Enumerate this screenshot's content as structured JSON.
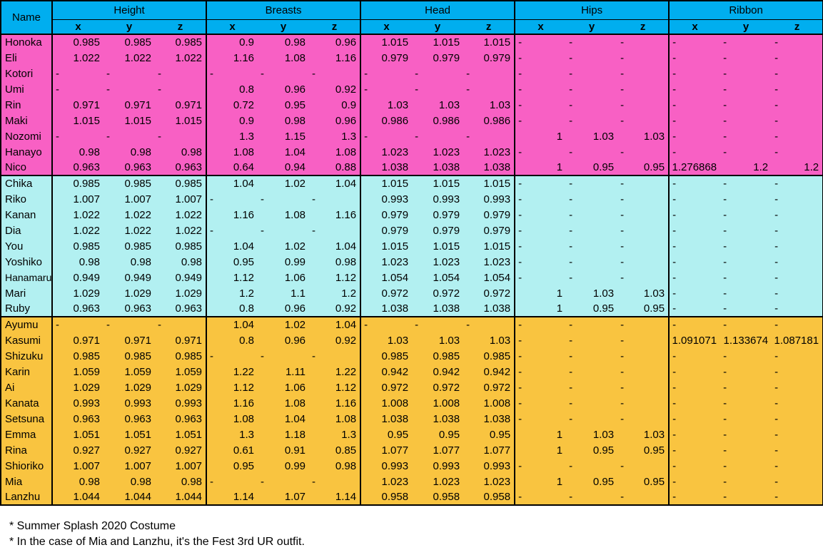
{
  "colors": {
    "header-bg": "#00AEEF",
    "muse-bg": "#F860C4",
    "aqours-bg": "#B2F0F1",
    "niji-bg": "#F9C440",
    "border": "#000000",
    "text": "#000000",
    "page-bg": "#FFFFFF"
  },
  "table": {
    "name_label": "Name",
    "group_keys": [
      "height",
      "breasts",
      "head",
      "hips",
      "ribbon"
    ],
    "groups": [
      {
        "key": "height",
        "label": "Height",
        "axes": [
          "x",
          "y",
          "z"
        ]
      },
      {
        "key": "breasts",
        "label": "Breasts",
        "axes": [
          "x",
          "y",
          "z"
        ]
      },
      {
        "key": "head",
        "label": "Head",
        "axes": [
          "x",
          "y",
          "z"
        ]
      },
      {
        "key": "hips",
        "label": "Hips",
        "axes": [
          "x",
          "y",
          "z"
        ]
      },
      {
        "key": "ribbon",
        "label": "Ribbon",
        "axes": [
          "x",
          "y",
          "z"
        ]
      }
    ],
    "sections": [
      {
        "group_name": "muse",
        "bg": "#F860C4",
        "rows": [
          {
            "name": "Honoka",
            "height": [
              "0.985",
              "0.985",
              "0.985"
            ],
            "breasts": [
              "0.9",
              "0.98",
              "0.96"
            ],
            "head": [
              "1.015",
              "1.015",
              "1.015"
            ],
            "hips": [
              "-",
              "-",
              "-"
            ],
            "ribbon": [
              "-",
              "-",
              "-"
            ]
          },
          {
            "name": "Eli",
            "height": [
              "1.022",
              "1.022",
              "1.022"
            ],
            "breasts": [
              "1.16",
              "1.08",
              "1.16"
            ],
            "head": [
              "0.979",
              "0.979",
              "0.979"
            ],
            "hips": [
              "-",
              "-",
              "-"
            ],
            "ribbon": [
              "-",
              "-",
              "-"
            ]
          },
          {
            "name": "Kotori",
            "height": [
              "-",
              "-",
              "-"
            ],
            "breasts": [
              "-",
              "-",
              "-"
            ],
            "head": [
              "-",
              "-",
              "-"
            ],
            "hips": [
              "-",
              "-",
              "-"
            ],
            "ribbon": [
              "-",
              "-",
              "-"
            ]
          },
          {
            "name": "Umi",
            "height": [
              "-",
              "-",
              "-"
            ],
            "breasts": [
              "0.8",
              "0.96",
              "0.92"
            ],
            "head": [
              "-",
              "-",
              "-"
            ],
            "hips": [
              "-",
              "-",
              "-"
            ],
            "ribbon": [
              "-",
              "-",
              "-"
            ]
          },
          {
            "name": "Rin",
            "height": [
              "0.971",
              "0.971",
              "0.971"
            ],
            "breasts": [
              "0.72",
              "0.95",
              "0.9"
            ],
            "head": [
              "1.03",
              "1.03",
              "1.03"
            ],
            "hips": [
              "-",
              "-",
              "-"
            ],
            "ribbon": [
              "-",
              "-",
              "-"
            ]
          },
          {
            "name": "Maki",
            "height": [
              "1.015",
              "1.015",
              "1.015"
            ],
            "breasts": [
              "0.9",
              "0.98",
              "0.96"
            ],
            "head": [
              "0.986",
              "0.986",
              "0.986"
            ],
            "hips": [
              "-",
              "-",
              "-"
            ],
            "ribbon": [
              "-",
              "-",
              "-"
            ]
          },
          {
            "name": "Nozomi",
            "height": [
              "-",
              "-",
              "-"
            ],
            "breasts": [
              "1.3",
              "1.15",
              "1.3"
            ],
            "head": [
              "-",
              "-",
              "-"
            ],
            "hips": [
              "1",
              "1.03",
              "1.03"
            ],
            "ribbon": [
              "-",
              "-",
              "-"
            ]
          },
          {
            "name": "Hanayo",
            "height": [
              "0.98",
              "0.98",
              "0.98"
            ],
            "breasts": [
              "1.08",
              "1.04",
              "1.08"
            ],
            "head": [
              "1.023",
              "1.023",
              "1.023"
            ],
            "hips": [
              "-",
              "-",
              "-"
            ],
            "ribbon": [
              "-",
              "-",
              "-"
            ]
          },
          {
            "name": "Nico",
            "height": [
              "0.963",
              "0.963",
              "0.963"
            ],
            "breasts": [
              "0.64",
              "0.94",
              "0.88"
            ],
            "head": [
              "1.038",
              "1.038",
              "1.038"
            ],
            "hips": [
              "1",
              "0.95",
              "0.95"
            ],
            "ribbon": [
              "1.276868",
              "1.2",
              "1.2"
            ]
          }
        ]
      },
      {
        "group_name": "aqours",
        "bg": "#B2F0F1",
        "rows": [
          {
            "name": "Chika",
            "height": [
              "0.985",
              "0.985",
              "0.985"
            ],
            "breasts": [
              "1.04",
              "1.02",
              "1.04"
            ],
            "head": [
              "1.015",
              "1.015",
              "1.015"
            ],
            "hips": [
              "-",
              "-",
              "-"
            ],
            "ribbon": [
              "-",
              "-",
              "-"
            ]
          },
          {
            "name": "Riko",
            "height": [
              "1.007",
              "1.007",
              "1.007"
            ],
            "breasts": [
              "-",
              "-",
              "-"
            ],
            "head": [
              "0.993",
              "0.993",
              "0.993"
            ],
            "hips": [
              "-",
              "-",
              "-"
            ],
            "ribbon": [
              "-",
              "-",
              "-"
            ]
          },
          {
            "name": "Kanan",
            "height": [
              "1.022",
              "1.022",
              "1.022"
            ],
            "breasts": [
              "1.16",
              "1.08",
              "1.16"
            ],
            "head": [
              "0.979",
              "0.979",
              "0.979"
            ],
            "hips": [
              "-",
              "-",
              "-"
            ],
            "ribbon": [
              "-",
              "-",
              "-"
            ]
          },
          {
            "name": "Dia",
            "height": [
              "1.022",
              "1.022",
              "1.022"
            ],
            "breasts": [
              "-",
              "-",
              "-"
            ],
            "head": [
              "0.979",
              "0.979",
              "0.979"
            ],
            "hips": [
              "-",
              "-",
              "-"
            ],
            "ribbon": [
              "-",
              "-",
              "-"
            ]
          },
          {
            "name": "You",
            "height": [
              "0.985",
              "0.985",
              "0.985"
            ],
            "breasts": [
              "1.04",
              "1.02",
              "1.04"
            ],
            "head": [
              "1.015",
              "1.015",
              "1.015"
            ],
            "hips": [
              "-",
              "-",
              "-"
            ],
            "ribbon": [
              "-",
              "-",
              "-"
            ]
          },
          {
            "name": "Yoshiko",
            "height": [
              "0.98",
              "0.98",
              "0.98"
            ],
            "breasts": [
              "0.95",
              "0.99",
              "0.98"
            ],
            "head": [
              "1.023",
              "1.023",
              "1.023"
            ],
            "hips": [
              "-",
              "-",
              "-"
            ],
            "ribbon": [
              "-",
              "-",
              "-"
            ]
          },
          {
            "name": "Hanamaru",
            "height": [
              "0.949",
              "0.949",
              "0.949"
            ],
            "breasts": [
              "1.12",
              "1.06",
              "1.12"
            ],
            "head": [
              "1.054",
              "1.054",
              "1.054"
            ],
            "hips": [
              "-",
              "-",
              "-"
            ],
            "ribbon": [
              "-",
              "-",
              "-"
            ]
          },
          {
            "name": "Mari",
            "height": [
              "1.029",
              "1.029",
              "1.029"
            ],
            "breasts": [
              "1.2",
              "1.1",
              "1.2"
            ],
            "head": [
              "0.972",
              "0.972",
              "0.972"
            ],
            "hips": [
              "1",
              "1.03",
              "1.03"
            ],
            "ribbon": [
              "-",
              "-",
              "-"
            ]
          },
          {
            "name": "Ruby",
            "height": [
              "0.963",
              "0.963",
              "0.963"
            ],
            "breasts": [
              "0.8",
              "0.96",
              "0.92"
            ],
            "head": [
              "1.038",
              "1.038",
              "1.038"
            ],
            "hips": [
              "1",
              "0.95",
              "0.95"
            ],
            "ribbon": [
              "-",
              "-",
              "-"
            ]
          }
        ]
      },
      {
        "group_name": "nijigasaki",
        "bg": "#F9C440",
        "rows": [
          {
            "name": "Ayumu",
            "height": [
              "-",
              "-",
              "-"
            ],
            "breasts": [
              "1.04",
              "1.02",
              "1.04"
            ],
            "head": [
              "-",
              "-",
              "-"
            ],
            "hips": [
              "-",
              "-",
              "-"
            ],
            "ribbon": [
              "-",
              "-",
              "-"
            ]
          },
          {
            "name": "Kasumi",
            "height": [
              "0.971",
              "0.971",
              "0.971"
            ],
            "breasts": [
              "0.8",
              "0.96",
              "0.92"
            ],
            "head": [
              "1.03",
              "1.03",
              "1.03"
            ],
            "hips": [
              "-",
              "-",
              "-"
            ],
            "ribbon": [
              "1.091071",
              "1.133674",
              "1.087181"
            ]
          },
          {
            "name": "Shizuku",
            "height": [
              "0.985",
              "0.985",
              "0.985"
            ],
            "breasts": [
              "-",
              "-",
              "-"
            ],
            "head": [
              "0.985",
              "0.985",
              "0.985"
            ],
            "hips": [
              "-",
              "-",
              "-"
            ],
            "ribbon": [
              "-",
              "-",
              "-"
            ]
          },
          {
            "name": "Karin",
            "height": [
              "1.059",
              "1.059",
              "1.059"
            ],
            "breasts": [
              "1.22",
              "1.11",
              "1.22"
            ],
            "head": [
              "0.942",
              "0.942",
              "0.942"
            ],
            "hips": [
              "-",
              "-",
              "-"
            ],
            "ribbon": [
              "-",
              "-",
              "-"
            ]
          },
          {
            "name": "Ai",
            "height": [
              "1.029",
              "1.029",
              "1.029"
            ],
            "breasts": [
              "1.12",
              "1.06",
              "1.12"
            ],
            "head": [
              "0.972",
              "0.972",
              "0.972"
            ],
            "hips": [
              "-",
              "-",
              "-"
            ],
            "ribbon": [
              "-",
              "-",
              "-"
            ]
          },
          {
            "name": "Kanata",
            "height": [
              "0.993",
              "0.993",
              "0.993"
            ],
            "breasts": [
              "1.16",
              "1.08",
              "1.16"
            ],
            "head": [
              "1.008",
              "1.008",
              "1.008"
            ],
            "hips": [
              "-",
              "-",
              "-"
            ],
            "ribbon": [
              "-",
              "-",
              "-"
            ]
          },
          {
            "name": "Setsuna",
            "height": [
              "0.963",
              "0.963",
              "0.963"
            ],
            "breasts": [
              "1.08",
              "1.04",
              "1.08"
            ],
            "head": [
              "1.038",
              "1.038",
              "1.038"
            ],
            "hips": [
              "-",
              "-",
              "-"
            ],
            "ribbon": [
              "-",
              "-",
              "-"
            ]
          },
          {
            "name": "Emma",
            "height": [
              "1.051",
              "1.051",
              "1.051"
            ],
            "breasts": [
              "1.3",
              "1.18",
              "1.3"
            ],
            "head": [
              "0.95",
              "0.95",
              "0.95"
            ],
            "hips": [
              "1",
              "1.03",
              "1.03"
            ],
            "ribbon": [
              "-",
              "-",
              "-"
            ]
          },
          {
            "name": "Rina",
            "height": [
              "0.927",
              "0.927",
              "0.927"
            ],
            "breasts": [
              "0.61",
              "0.91",
              "0.85"
            ],
            "head": [
              "1.077",
              "1.077",
              "1.077"
            ],
            "hips": [
              "1",
              "0.95",
              "0.95"
            ],
            "ribbon": [
              "-",
              "-",
              "-"
            ]
          },
          {
            "name": "Shioriko",
            "height": [
              "1.007",
              "1.007",
              "1.007"
            ],
            "breasts": [
              "0.95",
              "0.99",
              "0.98"
            ],
            "head": [
              "0.993",
              "0.993",
              "0.993"
            ],
            "hips": [
              "-",
              "-",
              "-"
            ],
            "ribbon": [
              "-",
              "-",
              "-"
            ]
          },
          {
            "name": "Mia",
            "height": [
              "0.98",
              "0.98",
              "0.98"
            ],
            "breasts": [
              "-",
              "-",
              "-"
            ],
            "head": [
              "1.023",
              "1.023",
              "1.023"
            ],
            "hips": [
              "1",
              "0.95",
              "0.95"
            ],
            "ribbon": [
              "-",
              "-",
              "-"
            ]
          },
          {
            "name": "Lanzhu",
            "height": [
              "1.044",
              "1.044",
              "1.044"
            ],
            "breasts": [
              "1.14",
              "1.07",
              "1.14"
            ],
            "head": [
              "0.958",
              "0.958",
              "0.958"
            ],
            "hips": [
              "-",
              "-",
              "-"
            ],
            "ribbon": [
              "-",
              "-",
              "-"
            ]
          }
        ]
      }
    ]
  },
  "footnotes": [
    "* Summer Splash 2020 Costume",
    "* In the case of Mia and Lanzhu, it's the Fest 3rd UR outfit."
  ]
}
